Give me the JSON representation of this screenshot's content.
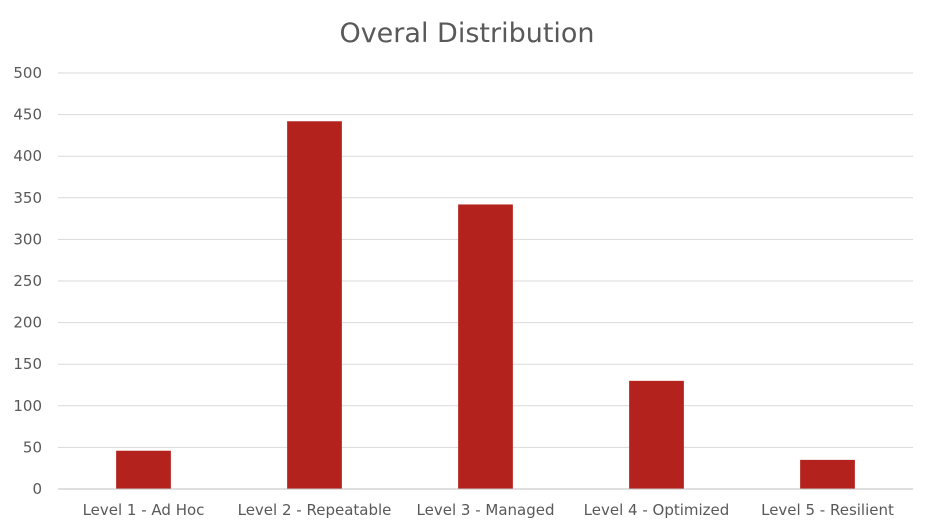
{
  "chart_data": {
    "type": "bar",
    "title": "Overal Distribution",
    "categories": [
      "Level 1 - Ad Hoc",
      "Level 2 - Repeatable",
      "Level 3 - Managed",
      "Level 4 - Optimized",
      "Level 5 - Resilient"
    ],
    "values": [
      46,
      442,
      342,
      130,
      35
    ],
    "ylim": [
      0,
      500
    ],
    "yticks": [
      0,
      50,
      100,
      150,
      200,
      250,
      300,
      350,
      400,
      450,
      500
    ],
    "grid": true,
    "legend": "none",
    "bar_color": "#b3221c"
  }
}
